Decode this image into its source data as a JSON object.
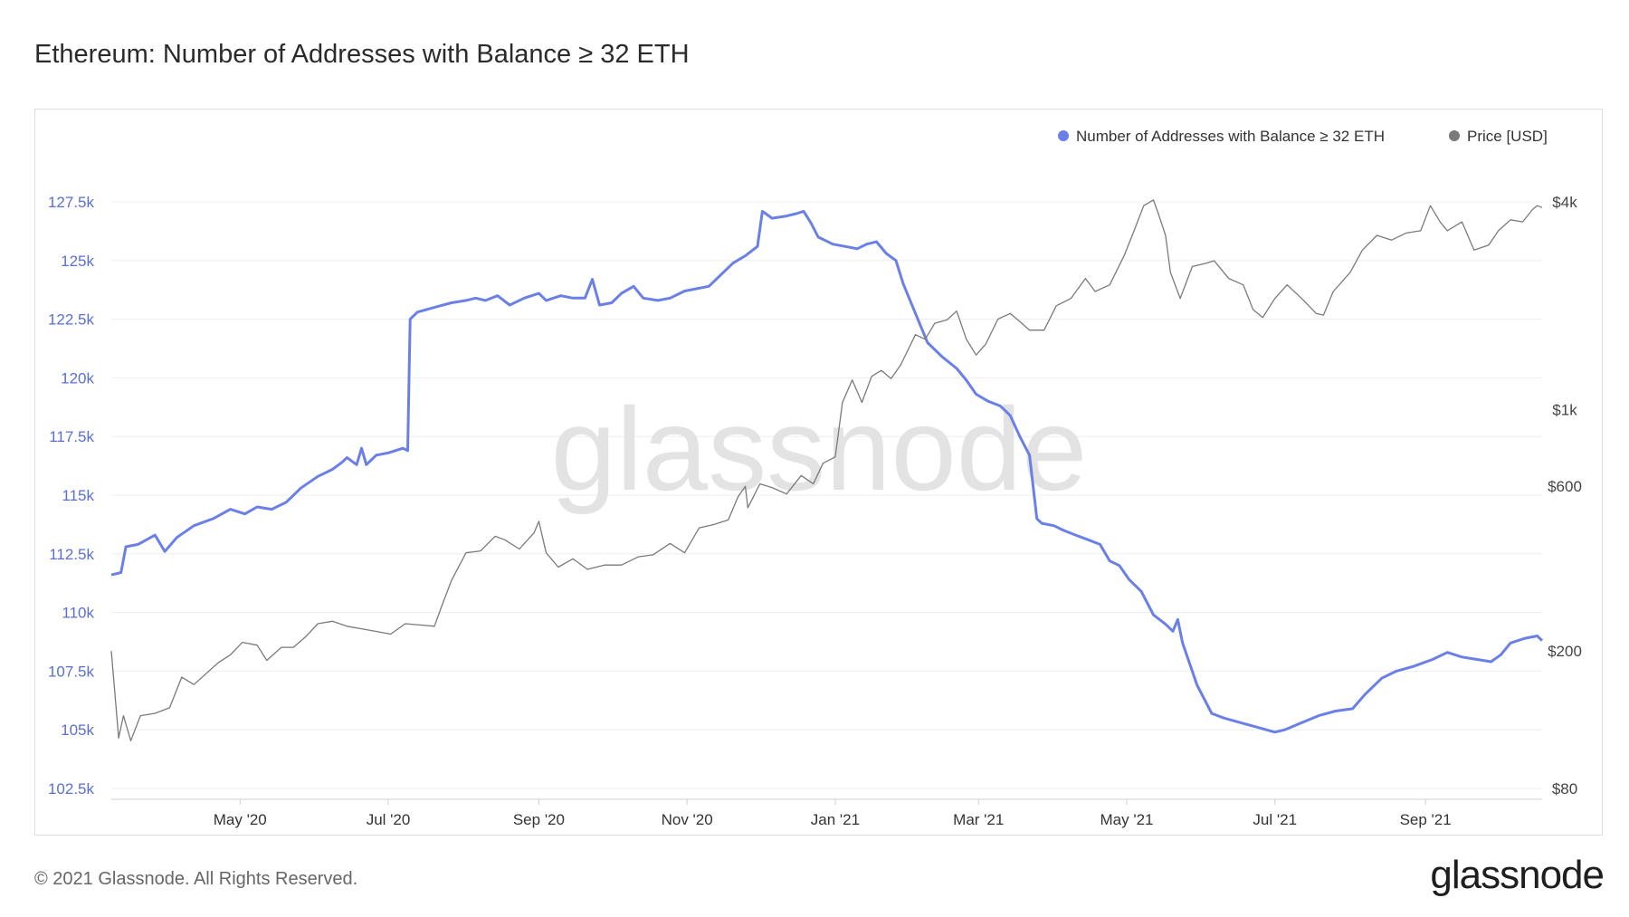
{
  "title": "Ethereum: Number of Addresses with Balance ≥ 32 ETH",
  "footer": {
    "copyright": "© 2021 Glassnode. All Rights Reserved.",
    "logo": "glassnode"
  },
  "watermark": "glassnode",
  "colors": {
    "addresses": "#6a80e6",
    "price": "#7a7a7a",
    "grid": "#eeeeee",
    "left_axis": "#5a6fd6"
  },
  "chart_data": {
    "type": "line",
    "title": "Ethereum: Number of Addresses with Balance ≥ 32 ETH",
    "legend_position": "top-right",
    "grid": true,
    "x": {
      "type": "date",
      "range": [
        "2020-03-09",
        "2021-10-19"
      ],
      "tick_labels": [
        "May '20",
        "Jul '20",
        "Sep '20",
        "Nov '20",
        "Jan '21",
        "Mar '21",
        "May '21",
        "Jul '21",
        "Sep '21"
      ],
      "tick_dates": [
        "2020-05-01",
        "2020-07-01",
        "2020-09-01",
        "2020-11-01",
        "2021-01-01",
        "2021-03-01",
        "2021-05-01",
        "2021-07-01",
        "2021-09-01"
      ]
    },
    "y_left": {
      "range": [
        102500,
        127500
      ],
      "ticks": [
        102500,
        105000,
        107500,
        110000,
        112500,
        115000,
        117500,
        120000,
        122500,
        125000,
        127500
      ],
      "tick_labels": [
        "102.5k",
        "105k",
        "107.5k",
        "110k",
        "112.5k",
        "115k",
        "117.5k",
        "120k",
        "122.5k",
        "125k",
        "127.5k"
      ]
    },
    "y_right": {
      "scale": "log",
      "range": [
        80,
        4000
      ],
      "ticks": [
        80,
        200,
        600,
        1000,
        4000
      ],
      "tick_labels": [
        "$80",
        "$200",
        "$600",
        "$1k",
        "$4k"
      ]
    },
    "series": [
      {
        "name": "Number of Addresses with Balance ≥ 32 ETH",
        "axis": "left",
        "points": [
          [
            "2020-03-09",
            111600
          ],
          [
            "2020-03-13",
            111700
          ],
          [
            "2020-03-15",
            112800
          ],
          [
            "2020-03-20",
            112900
          ],
          [
            "2020-03-27",
            113300
          ],
          [
            "2020-03-31",
            112600
          ],
          [
            "2020-04-05",
            113200
          ],
          [
            "2020-04-12",
            113700
          ],
          [
            "2020-04-20",
            114000
          ],
          [
            "2020-04-27",
            114400
          ],
          [
            "2020-05-03",
            114200
          ],
          [
            "2020-05-08",
            114500
          ],
          [
            "2020-05-14",
            114400
          ],
          [
            "2020-05-20",
            114700
          ],
          [
            "2020-05-26",
            115300
          ],
          [
            "2020-06-02",
            115800
          ],
          [
            "2020-06-08",
            116100
          ],
          [
            "2020-06-12",
            116400
          ],
          [
            "2020-06-14",
            116600
          ],
          [
            "2020-06-18",
            116300
          ],
          [
            "2020-06-20",
            117000
          ],
          [
            "2020-06-22",
            116300
          ],
          [
            "2020-06-26",
            116700
          ],
          [
            "2020-07-01",
            116800
          ],
          [
            "2020-07-07",
            117000
          ],
          [
            "2020-07-09",
            116900
          ],
          [
            "2020-07-10",
            122500
          ],
          [
            "2020-07-13",
            122800
          ],
          [
            "2020-07-20",
            123000
          ],
          [
            "2020-07-27",
            123200
          ],
          [
            "2020-08-02",
            123300
          ],
          [
            "2020-08-06",
            123400
          ],
          [
            "2020-08-10",
            123300
          ],
          [
            "2020-08-15",
            123500
          ],
          [
            "2020-08-20",
            123100
          ],
          [
            "2020-08-26",
            123400
          ],
          [
            "2020-09-01",
            123600
          ],
          [
            "2020-09-04",
            123300
          ],
          [
            "2020-09-10",
            123500
          ],
          [
            "2020-09-15",
            123400
          ],
          [
            "2020-09-20",
            123400
          ],
          [
            "2020-09-23",
            124200
          ],
          [
            "2020-09-26",
            123100
          ],
          [
            "2020-10-01",
            123200
          ],
          [
            "2020-10-05",
            123600
          ],
          [
            "2020-10-10",
            123900
          ],
          [
            "2020-10-14",
            123400
          ],
          [
            "2020-10-20",
            123300
          ],
          [
            "2020-10-25",
            123400
          ],
          [
            "2020-10-31",
            123700
          ],
          [
            "2020-11-05",
            123800
          ],
          [
            "2020-11-10",
            123900
          ],
          [
            "2020-11-16",
            124500
          ],
          [
            "2020-11-20",
            124900
          ],
          [
            "2020-11-25",
            125200
          ],
          [
            "2020-11-30",
            125600
          ],
          [
            "2020-12-02",
            127100
          ],
          [
            "2020-12-06",
            126800
          ],
          [
            "2020-12-12",
            126900
          ],
          [
            "2020-12-16",
            127000
          ],
          [
            "2020-12-19",
            127100
          ],
          [
            "2020-12-22",
            126600
          ],
          [
            "2020-12-25",
            126000
          ],
          [
            "2020-12-31",
            125700
          ],
          [
            "2021-01-05",
            125600
          ],
          [
            "2021-01-10",
            125500
          ],
          [
            "2021-01-14",
            125700
          ],
          [
            "2021-01-18",
            125800
          ],
          [
            "2021-01-22",
            125300
          ],
          [
            "2021-01-26",
            125000
          ],
          [
            "2021-01-29",
            124000
          ],
          [
            "2021-02-02",
            123000
          ],
          [
            "2021-02-08",
            121500
          ],
          [
            "2021-02-14",
            120900
          ],
          [
            "2021-02-20",
            120400
          ],
          [
            "2021-02-24",
            119900
          ],
          [
            "2021-02-28",
            119300
          ],
          [
            "2021-03-05",
            119000
          ],
          [
            "2021-03-10",
            118800
          ],
          [
            "2021-03-14",
            118400
          ],
          [
            "2021-03-18",
            117500
          ],
          [
            "2021-03-22",
            116700
          ],
          [
            "2021-03-25",
            114000
          ],
          [
            "2021-03-27",
            113800
          ],
          [
            "2021-04-01",
            113700
          ],
          [
            "2021-04-05",
            113500
          ],
          [
            "2021-04-10",
            113300
          ],
          [
            "2021-04-15",
            113100
          ],
          [
            "2021-04-20",
            112900
          ],
          [
            "2021-04-24",
            112200
          ],
          [
            "2021-04-28",
            112000
          ],
          [
            "2021-05-02",
            111400
          ],
          [
            "2021-05-07",
            110900
          ],
          [
            "2021-05-12",
            109900
          ],
          [
            "2021-05-17",
            109500
          ],
          [
            "2021-05-20",
            109200
          ],
          [
            "2021-05-22",
            109700
          ],
          [
            "2021-05-24",
            108700
          ],
          [
            "2021-05-30",
            106900
          ],
          [
            "2021-06-05",
            105700
          ],
          [
            "2021-06-10",
            105500
          ],
          [
            "2021-06-17",
            105300
          ],
          [
            "2021-06-24",
            105100
          ],
          [
            "2021-07-01",
            104900
          ],
          [
            "2021-07-05",
            105000
          ],
          [
            "2021-07-12",
            105300
          ],
          [
            "2021-07-19",
            105600
          ],
          [
            "2021-07-26",
            105800
          ],
          [
            "2021-08-02",
            105900
          ],
          [
            "2021-08-07",
            106500
          ],
          [
            "2021-08-14",
            107200
          ],
          [
            "2021-08-20",
            107500
          ],
          [
            "2021-08-27",
            107700
          ],
          [
            "2021-09-04",
            108000
          ],
          [
            "2021-09-10",
            108300
          ],
          [
            "2021-09-16",
            108100
          ],
          [
            "2021-09-22",
            108000
          ],
          [
            "2021-09-28",
            107900
          ],
          [
            "2021-10-02",
            108200
          ],
          [
            "2021-10-06",
            108700
          ],
          [
            "2021-10-12",
            108900
          ],
          [
            "2021-10-17",
            109000
          ],
          [
            "2021-10-19",
            108800
          ]
        ]
      },
      {
        "name": "Price [USD]",
        "axis": "right",
        "points": [
          [
            "2020-03-09",
            200
          ],
          [
            "2020-03-12",
            112
          ],
          [
            "2020-03-14",
            130
          ],
          [
            "2020-03-17",
            110
          ],
          [
            "2020-03-21",
            130
          ],
          [
            "2020-03-27",
            132
          ],
          [
            "2020-04-02",
            137
          ],
          [
            "2020-04-07",
            168
          ],
          [
            "2020-04-12",
            160
          ],
          [
            "2020-04-17",
            172
          ],
          [
            "2020-04-22",
            185
          ],
          [
            "2020-04-27",
            195
          ],
          [
            "2020-05-02",
            212
          ],
          [
            "2020-05-08",
            208
          ],
          [
            "2020-05-12",
            188
          ],
          [
            "2020-05-18",
            205
          ],
          [
            "2020-05-23",
            205
          ],
          [
            "2020-05-28",
            220
          ],
          [
            "2020-06-02",
            240
          ],
          [
            "2020-06-08",
            244
          ],
          [
            "2020-06-14",
            236
          ],
          [
            "2020-06-20",
            232
          ],
          [
            "2020-06-26",
            228
          ],
          [
            "2020-07-02",
            224
          ],
          [
            "2020-07-08",
            240
          ],
          [
            "2020-07-14",
            238
          ],
          [
            "2020-07-20",
            236
          ],
          [
            "2020-07-23",
            270
          ],
          [
            "2020-07-27",
            320
          ],
          [
            "2020-08-02",
            385
          ],
          [
            "2020-08-08",
            390
          ],
          [
            "2020-08-14",
            430
          ],
          [
            "2020-08-18",
            420
          ],
          [
            "2020-08-24",
            395
          ],
          [
            "2020-08-30",
            440
          ],
          [
            "2020-09-01",
            475
          ],
          [
            "2020-09-04",
            385
          ],
          [
            "2020-09-09",
            350
          ],
          [
            "2020-09-15",
            370
          ],
          [
            "2020-09-21",
            345
          ],
          [
            "2020-09-28",
            355
          ],
          [
            "2020-10-05",
            355
          ],
          [
            "2020-10-12",
            375
          ],
          [
            "2020-10-18",
            380
          ],
          [
            "2020-10-25",
            410
          ],
          [
            "2020-10-31",
            385
          ],
          [
            "2020-11-06",
            455
          ],
          [
            "2020-11-12",
            465
          ],
          [
            "2020-11-18",
            480
          ],
          [
            "2020-11-22",
            560
          ],
          [
            "2020-11-25",
            600
          ],
          [
            "2020-11-26",
            520
          ],
          [
            "2020-12-01",
            610
          ],
          [
            "2020-12-06",
            595
          ],
          [
            "2020-12-12",
            570
          ],
          [
            "2020-12-18",
            645
          ],
          [
            "2020-12-23",
            610
          ],
          [
            "2020-12-27",
            700
          ],
          [
            "2021-01-01",
            730
          ],
          [
            "2021-01-04",
            1050
          ],
          [
            "2021-01-08",
            1220
          ],
          [
            "2021-01-12",
            1050
          ],
          [
            "2021-01-16",
            1250
          ],
          [
            "2021-01-20",
            1300
          ],
          [
            "2021-01-24",
            1230
          ],
          [
            "2021-01-28",
            1350
          ],
          [
            "2021-02-03",
            1650
          ],
          [
            "2021-02-07",
            1600
          ],
          [
            "2021-02-11",
            1780
          ],
          [
            "2021-02-16",
            1820
          ],
          [
            "2021-02-20",
            1930
          ],
          [
            "2021-02-24",
            1600
          ],
          [
            "2021-02-28",
            1440
          ],
          [
            "2021-03-04",
            1550
          ],
          [
            "2021-03-09",
            1830
          ],
          [
            "2021-03-14",
            1900
          ],
          [
            "2021-03-18",
            1800
          ],
          [
            "2021-03-22",
            1700
          ],
          [
            "2021-03-28",
            1700
          ],
          [
            "2021-04-02",
            2000
          ],
          [
            "2021-04-08",
            2100
          ],
          [
            "2021-04-14",
            2400
          ],
          [
            "2021-04-18",
            2200
          ],
          [
            "2021-04-24",
            2300
          ],
          [
            "2021-04-30",
            2800
          ],
          [
            "2021-05-04",
            3300
          ],
          [
            "2021-05-08",
            3900
          ],
          [
            "2021-05-12",
            4050
          ],
          [
            "2021-05-14",
            3700
          ],
          [
            "2021-05-17",
            3200
          ],
          [
            "2021-05-19",
            2500
          ],
          [
            "2021-05-23",
            2100
          ],
          [
            "2021-05-28",
            2600
          ],
          [
            "2021-06-02",
            2650
          ],
          [
            "2021-06-06",
            2700
          ],
          [
            "2021-06-12",
            2400
          ],
          [
            "2021-06-18",
            2300
          ],
          [
            "2021-06-22",
            1950
          ],
          [
            "2021-06-26",
            1850
          ],
          [
            "2021-07-01",
            2100
          ],
          [
            "2021-07-06",
            2300
          ],
          [
            "2021-07-12",
            2100
          ],
          [
            "2021-07-18",
            1900
          ],
          [
            "2021-07-21",
            1880
          ],
          [
            "2021-07-25",
            2200
          ],
          [
            "2021-08-01",
            2500
          ],
          [
            "2021-08-06",
            2900
          ],
          [
            "2021-08-12",
            3200
          ],
          [
            "2021-08-18",
            3100
          ],
          [
            "2021-08-24",
            3250
          ],
          [
            "2021-08-30",
            3300
          ],
          [
            "2021-09-03",
            3900
          ],
          [
            "2021-09-07",
            3500
          ],
          [
            "2021-09-10",
            3300
          ],
          [
            "2021-09-16",
            3500
          ],
          [
            "2021-09-21",
            2900
          ],
          [
            "2021-09-27",
            3000
          ],
          [
            "2021-10-01",
            3300
          ],
          [
            "2021-10-06",
            3550
          ],
          [
            "2021-10-11",
            3500
          ],
          [
            "2021-10-15",
            3800
          ],
          [
            "2021-10-17",
            3900
          ],
          [
            "2021-10-19",
            3850
          ]
        ]
      }
    ]
  }
}
